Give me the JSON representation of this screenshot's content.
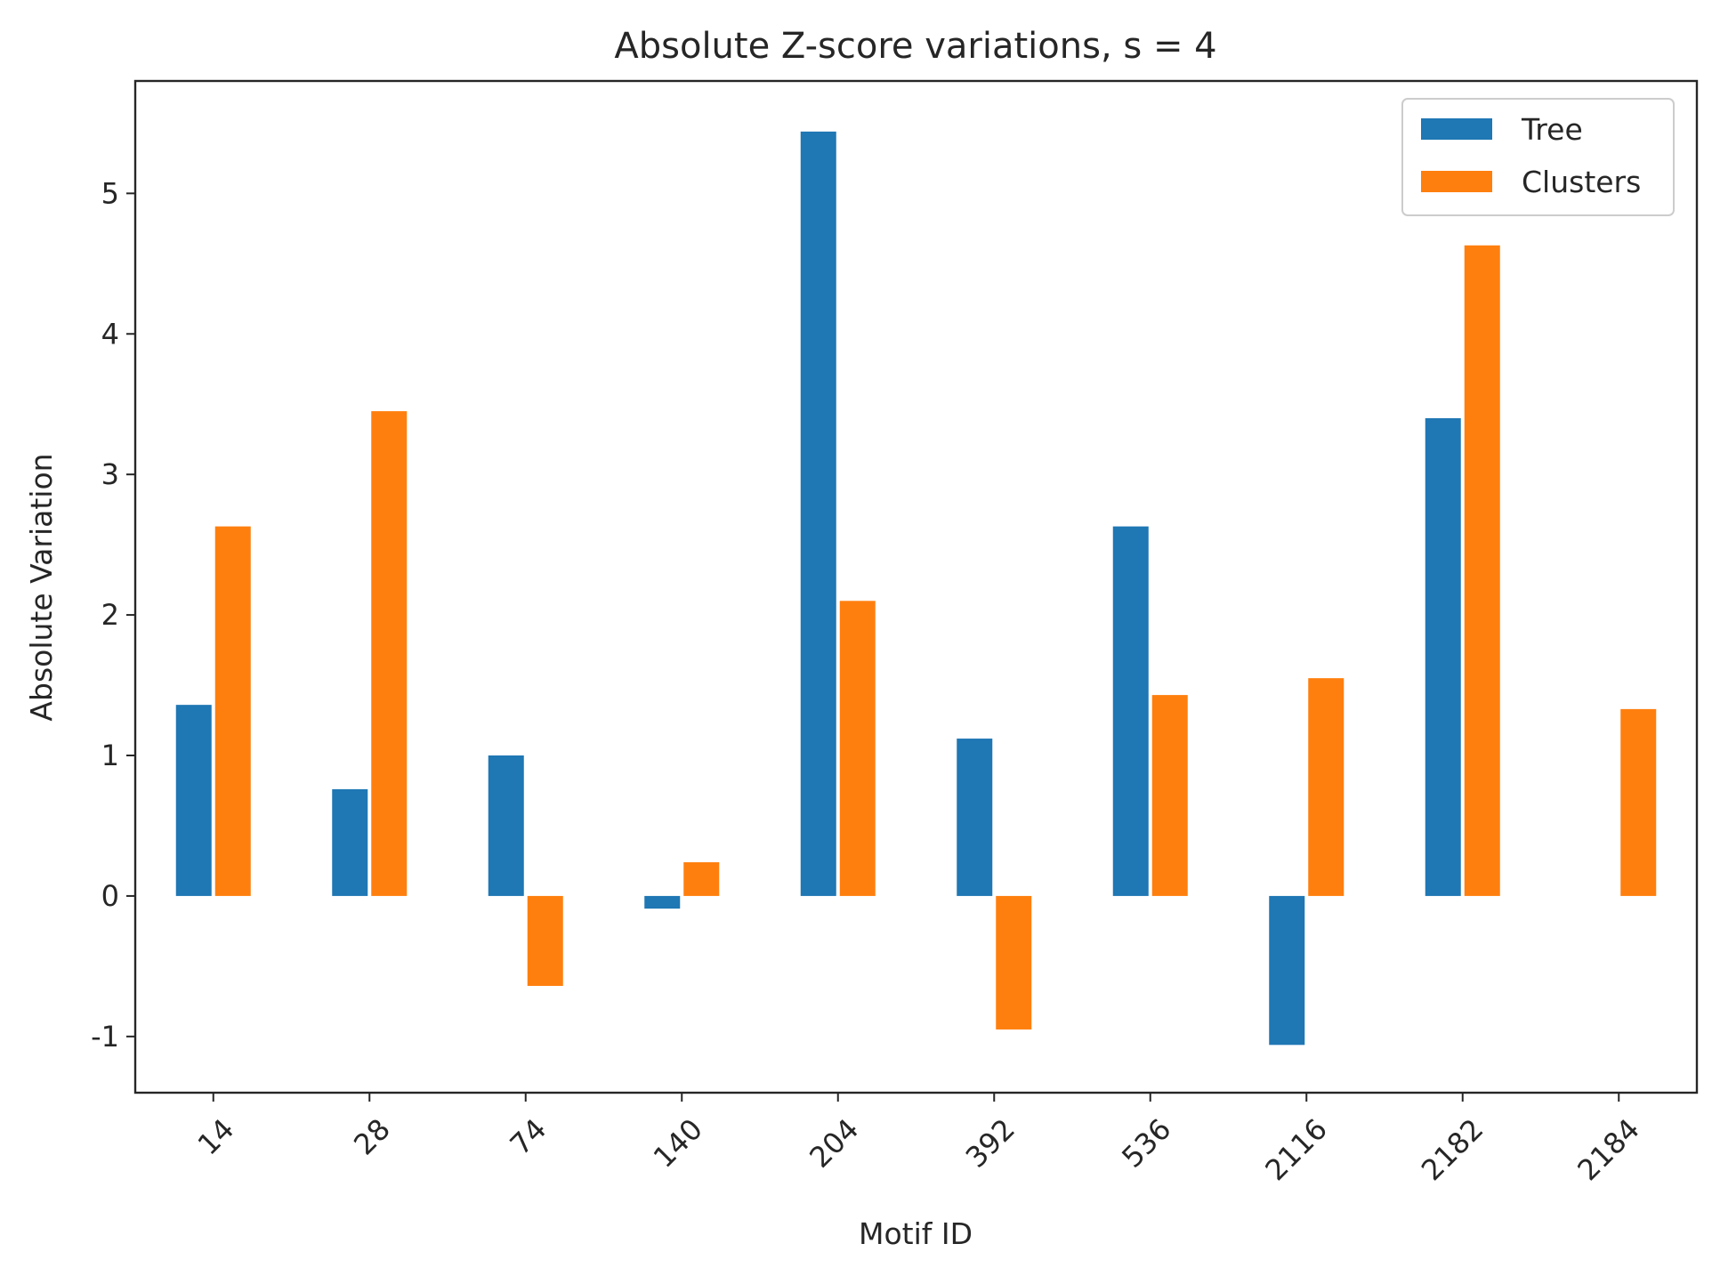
{
  "chart_data": {
    "type": "bar",
    "title": "Absolute Z-score variations, s = 4",
    "xlabel": "Motif ID",
    "ylabel": "Absolute Variation",
    "categories": [
      "14",
      "28",
      "74",
      "140",
      "204",
      "392",
      "536",
      "2116",
      "2182",
      "2184"
    ],
    "series": [
      {
        "name": "Tree",
        "color": "#1f77b4",
        "values": [
          1.36,
          0.76,
          1.0,
          -0.09,
          5.44,
          1.12,
          2.63,
          -1.06,
          3.4,
          0.0
        ]
      },
      {
        "name": "Clusters",
        "color": "#ff7f0e",
        "values": [
          2.63,
          3.45,
          -0.64,
          0.24,
          2.1,
          -0.95,
          1.43,
          1.55,
          4.63,
          1.33
        ]
      }
    ],
    "ylim": [
      -1.4,
      5.8
    ],
    "yticks": [
      -1,
      0,
      1,
      2,
      3,
      4,
      5
    ],
    "ytick_labels": [
      "-1",
      "0",
      "1",
      "2",
      "3",
      "4",
      "5"
    ],
    "grid": false,
    "legend_position": "top-right",
    "tick_rotation": "45 degrees"
  }
}
